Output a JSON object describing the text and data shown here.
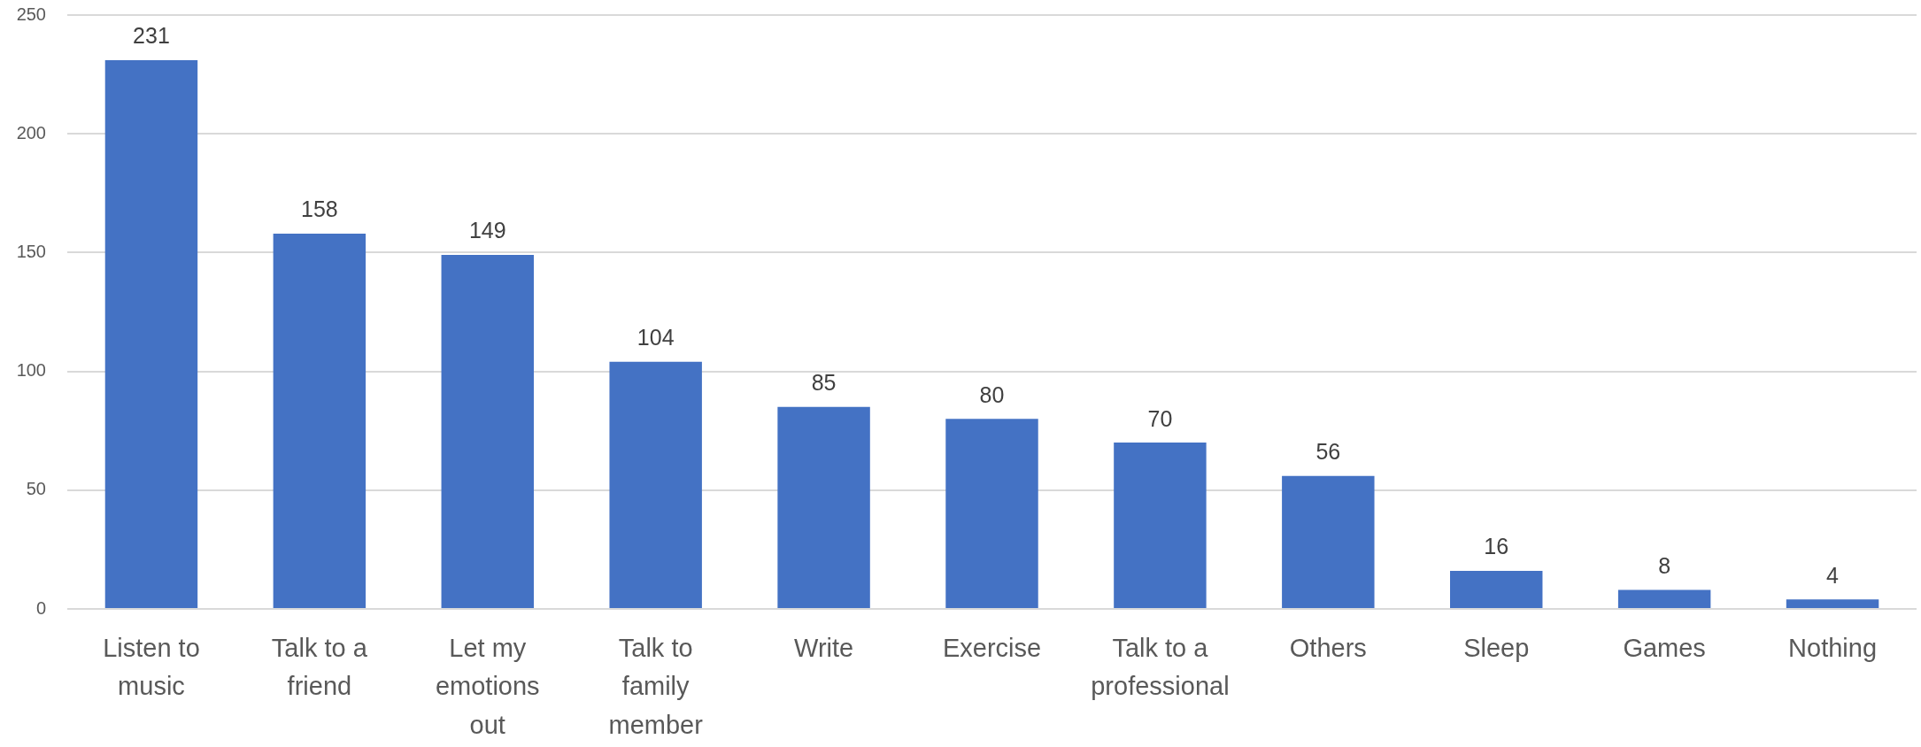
{
  "chart_data": {
    "type": "bar",
    "categories": [
      "Listen to music",
      "Talk to a friend",
      "Let my emotions out",
      "Talk to family member",
      "Write",
      "Exercise",
      "Talk to a professional",
      "Others",
      "Sleep",
      "Games",
      "Nothing"
    ],
    "values": [
      231,
      158,
      149,
      104,
      85,
      80,
      70,
      56,
      16,
      8,
      4
    ],
    "color": "#4472c4",
    "ylim": [
      0,
      250
    ],
    "yticks": [
      0,
      50,
      100,
      150,
      200,
      250
    ],
    "grid": "y",
    "data_labels": true
  }
}
